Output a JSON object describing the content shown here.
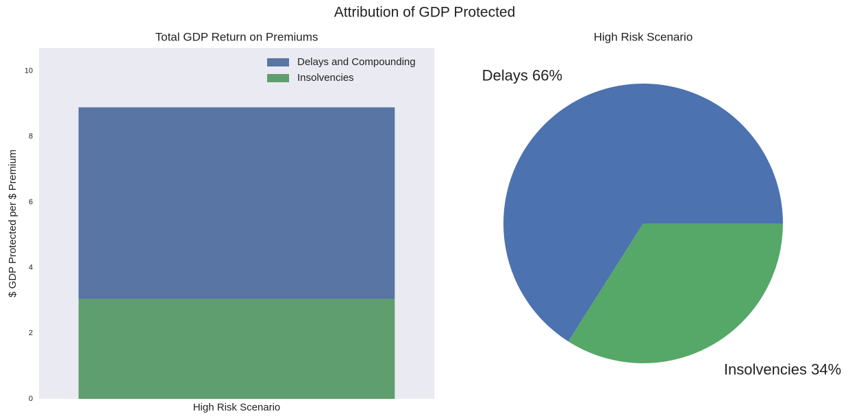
{
  "title": "Attribution of GDP Protected",
  "chart_data": [
    {
      "type": "bar",
      "title": "Total GDP Return on Premiums",
      "ylabel": "$ GDP Protected per $ Premium",
      "categories": [
        "High Risk Scenario"
      ],
      "series": [
        {
          "name": "Delays and Compounding",
          "color": "#5875a4",
          "values": [
            5.84
          ]
        },
        {
          "name": "Insolvencies",
          "color": "#5f9e6e",
          "values": [
            3.05
          ]
        }
      ],
      "stacked": true,
      "ylim": [
        0,
        10.7
      ],
      "yticks": [
        0,
        2,
        4,
        6,
        8,
        10
      ],
      "grid": false,
      "legend": "upper right"
    },
    {
      "type": "pie",
      "title": "High Risk Scenario",
      "values": [
        66,
        34
      ],
      "value_labels": [
        "Delays 66%",
        "Insolvencies 34%"
      ],
      "colors": [
        "#4c72b0",
        "#55a868"
      ]
    }
  ]
}
